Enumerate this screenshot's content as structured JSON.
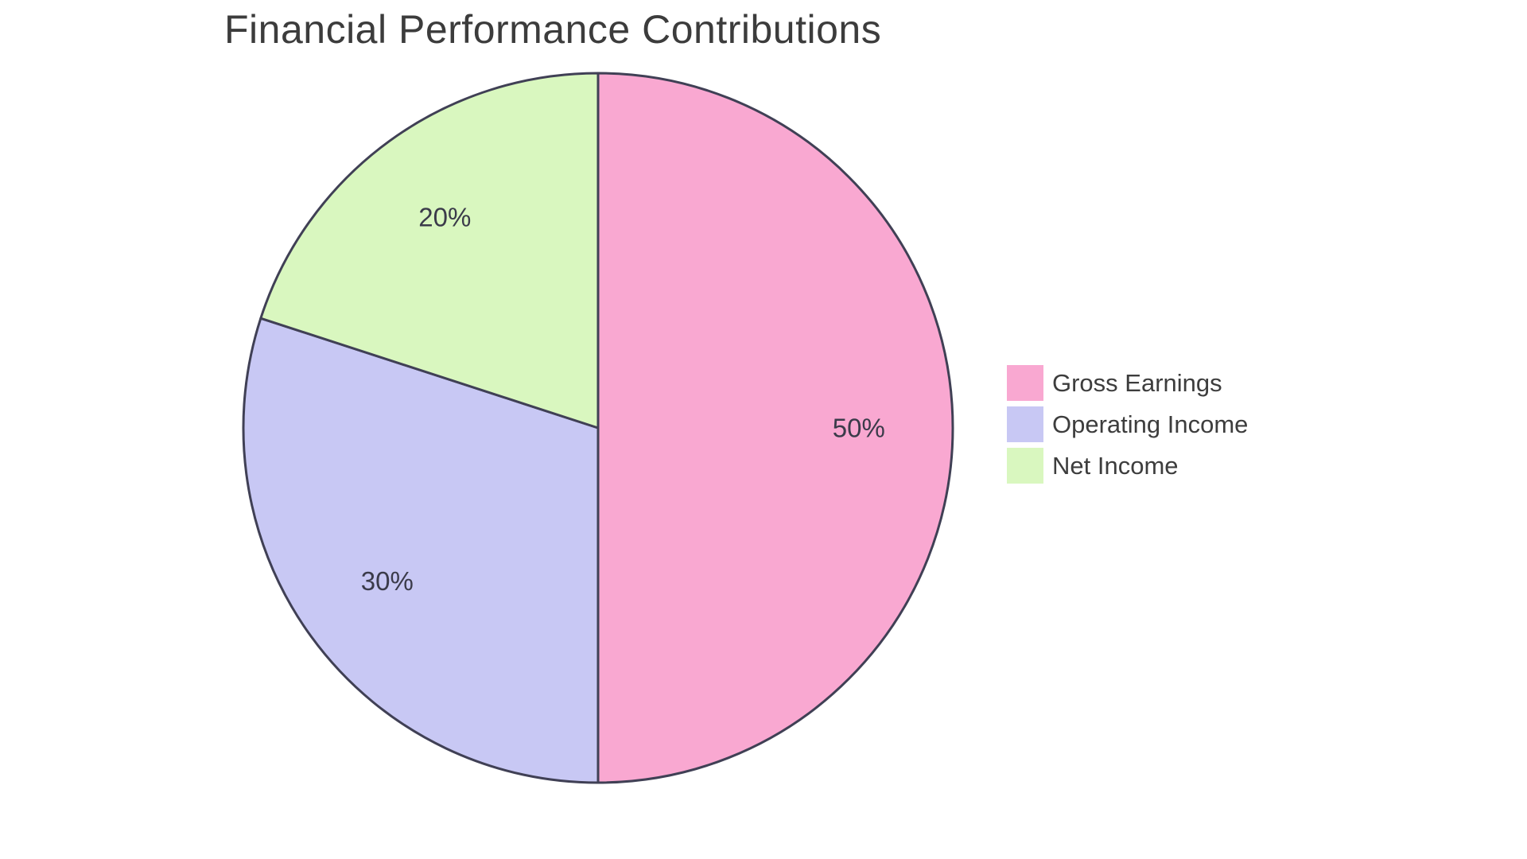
{
  "title": "Financial Performance Contributions",
  "chart_data": {
    "type": "pie",
    "title": "Financial Performance Contributions",
    "slices": [
      {
        "label": "Gross Earnings",
        "value": 50,
        "display": "50%",
        "color": "#F9A8D1"
      },
      {
        "label": "Operating Income",
        "value": 30,
        "display": "30%",
        "color": "#C8C8F4"
      },
      {
        "label": "Net Income",
        "value": 20,
        "display": "20%",
        "color": "#D9F7BF"
      }
    ],
    "start_angle_deg": 0,
    "direction": "clockwise",
    "stroke_color": "#404055",
    "stroke_width": 3,
    "label_color": "#3B3B4A",
    "label_font_size": 33,
    "label_radius_ratio": 0.735,
    "legend_position": "right",
    "background": "#FFFFFF"
  }
}
